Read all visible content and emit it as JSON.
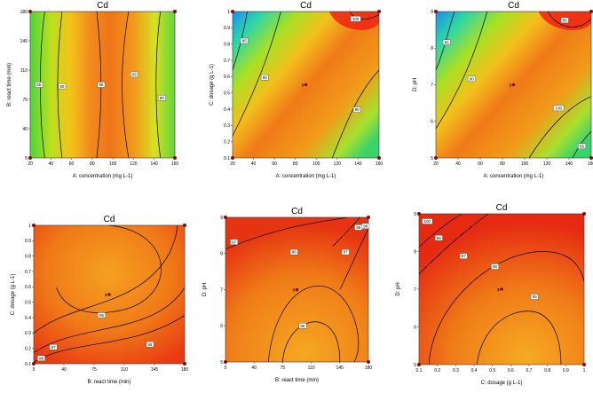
{
  "chart_data": [
    {
      "type": "contour",
      "title": "Cd",
      "xlabel": "A: concentration (mg L-1)",
      "ylabel": "B: react time (min)",
      "xlim": [
        20,
        160
      ],
      "ylim": [
        5,
        180
      ],
      "xticks": [
        "20",
        "40",
        "60",
        "80",
        "100",
        "120",
        "140",
        "160"
      ],
      "yticks": [
        "5",
        "40",
        "75",
        "110",
        "145",
        "180"
      ],
      "contour_labels": [
        "85",
        "90",
        "95",
        "95",
        "90",
        "85"
      ],
      "center_label": "3",
      "center_point": [
        90,
        92.5
      ]
    },
    {
      "type": "contour",
      "title": "Cd",
      "xlabel": "A: concentration (mg L-1)",
      "ylabel": "C: dosage (g L-1)",
      "xlim": [
        20,
        160
      ],
      "ylim": [
        0.1,
        1
      ],
      "xticks": [
        "20",
        "40",
        "60",
        "80",
        "100",
        "120",
        "140",
        "160"
      ],
      "yticks": [
        "0.1",
        "0.2",
        "0.3",
        "0.4",
        "0.5",
        "0.6",
        "0.7",
        "0.8",
        "0.9",
        "1"
      ],
      "contour_labels": [
        "85",
        "90",
        "90",
        "100"
      ],
      "center_label": "3",
      "center_point": [
        90,
        0.55
      ]
    },
    {
      "type": "contour",
      "title": "Cd",
      "xlabel": "A: concentration (mg L-1)",
      "ylabel": "D: pH",
      "xlim": [
        20,
        160
      ],
      "ylim": [
        5,
        9
      ],
      "xticks": [
        "20",
        "40",
        "60",
        "80",
        "100",
        "120",
        "140",
        "160"
      ],
      "yticks": [
        "5",
        "6",
        "7",
        "8",
        "9"
      ],
      "contour_labels": [
        "85",
        "90",
        "95",
        "100",
        "85"
      ],
      "center_label": "3",
      "center_point": [
        90,
        7
      ]
    },
    {
      "type": "contour",
      "title": "Cd",
      "xlabel": "B: react time (min)",
      "ylabel": "C: dosage (g L-1)",
      "xlim": [
        5,
        180
      ],
      "ylim": [
        0.1,
        1
      ],
      "xticks": [
        "5",
        "40",
        "75",
        "110",
        "145",
        "180"
      ],
      "yticks": [
        "0.1",
        "0.2",
        "0.3",
        "0.4",
        "0.5",
        "0.6",
        "0.7",
        "0.8",
        "0.9",
        "1"
      ],
      "contour_labels": [
        "98",
        "97",
        "96",
        "95"
      ],
      "center_label": "3",
      "center_point": [
        92.5,
        0.55
      ]
    },
    {
      "type": "contour",
      "title": "Cd",
      "xlabel": "B: react time (min)",
      "ylabel": "D: pH",
      "xlim": [
        5,
        180
      ],
      "ylim": [
        5,
        9
      ],
      "xticks": [
        "5",
        "40",
        "75",
        "110",
        "145",
        "180"
      ],
      "yticks": [
        "5",
        "6",
        "7",
        "8",
        "9"
      ],
      "contour_labels": [
        "97",
        "96",
        "98",
        "97",
        "96",
        "96"
      ],
      "center_label": "3",
      "center_point": [
        92.5,
        7
      ]
    },
    {
      "type": "contour",
      "title": "Cd",
      "xlabel": "C: dosage (g L-1)",
      "ylabel": "D: pH",
      "xlim": [
        0.1,
        1
      ],
      "ylim": [
        5,
        9
      ],
      "xticks": [
        "0.1",
        "0.2",
        "0.3",
        "0.4",
        "0.5",
        "0.6",
        "0.7",
        "0.8",
        "0.9",
        "1"
      ],
      "yticks": [
        "5",
        "6",
        "7",
        "8",
        "9"
      ],
      "contour_labels": [
        "100",
        "98",
        "97",
        "96",
        "95"
      ],
      "center_label": "3",
      "center_point": [
        0.55,
        7
      ]
    }
  ]
}
